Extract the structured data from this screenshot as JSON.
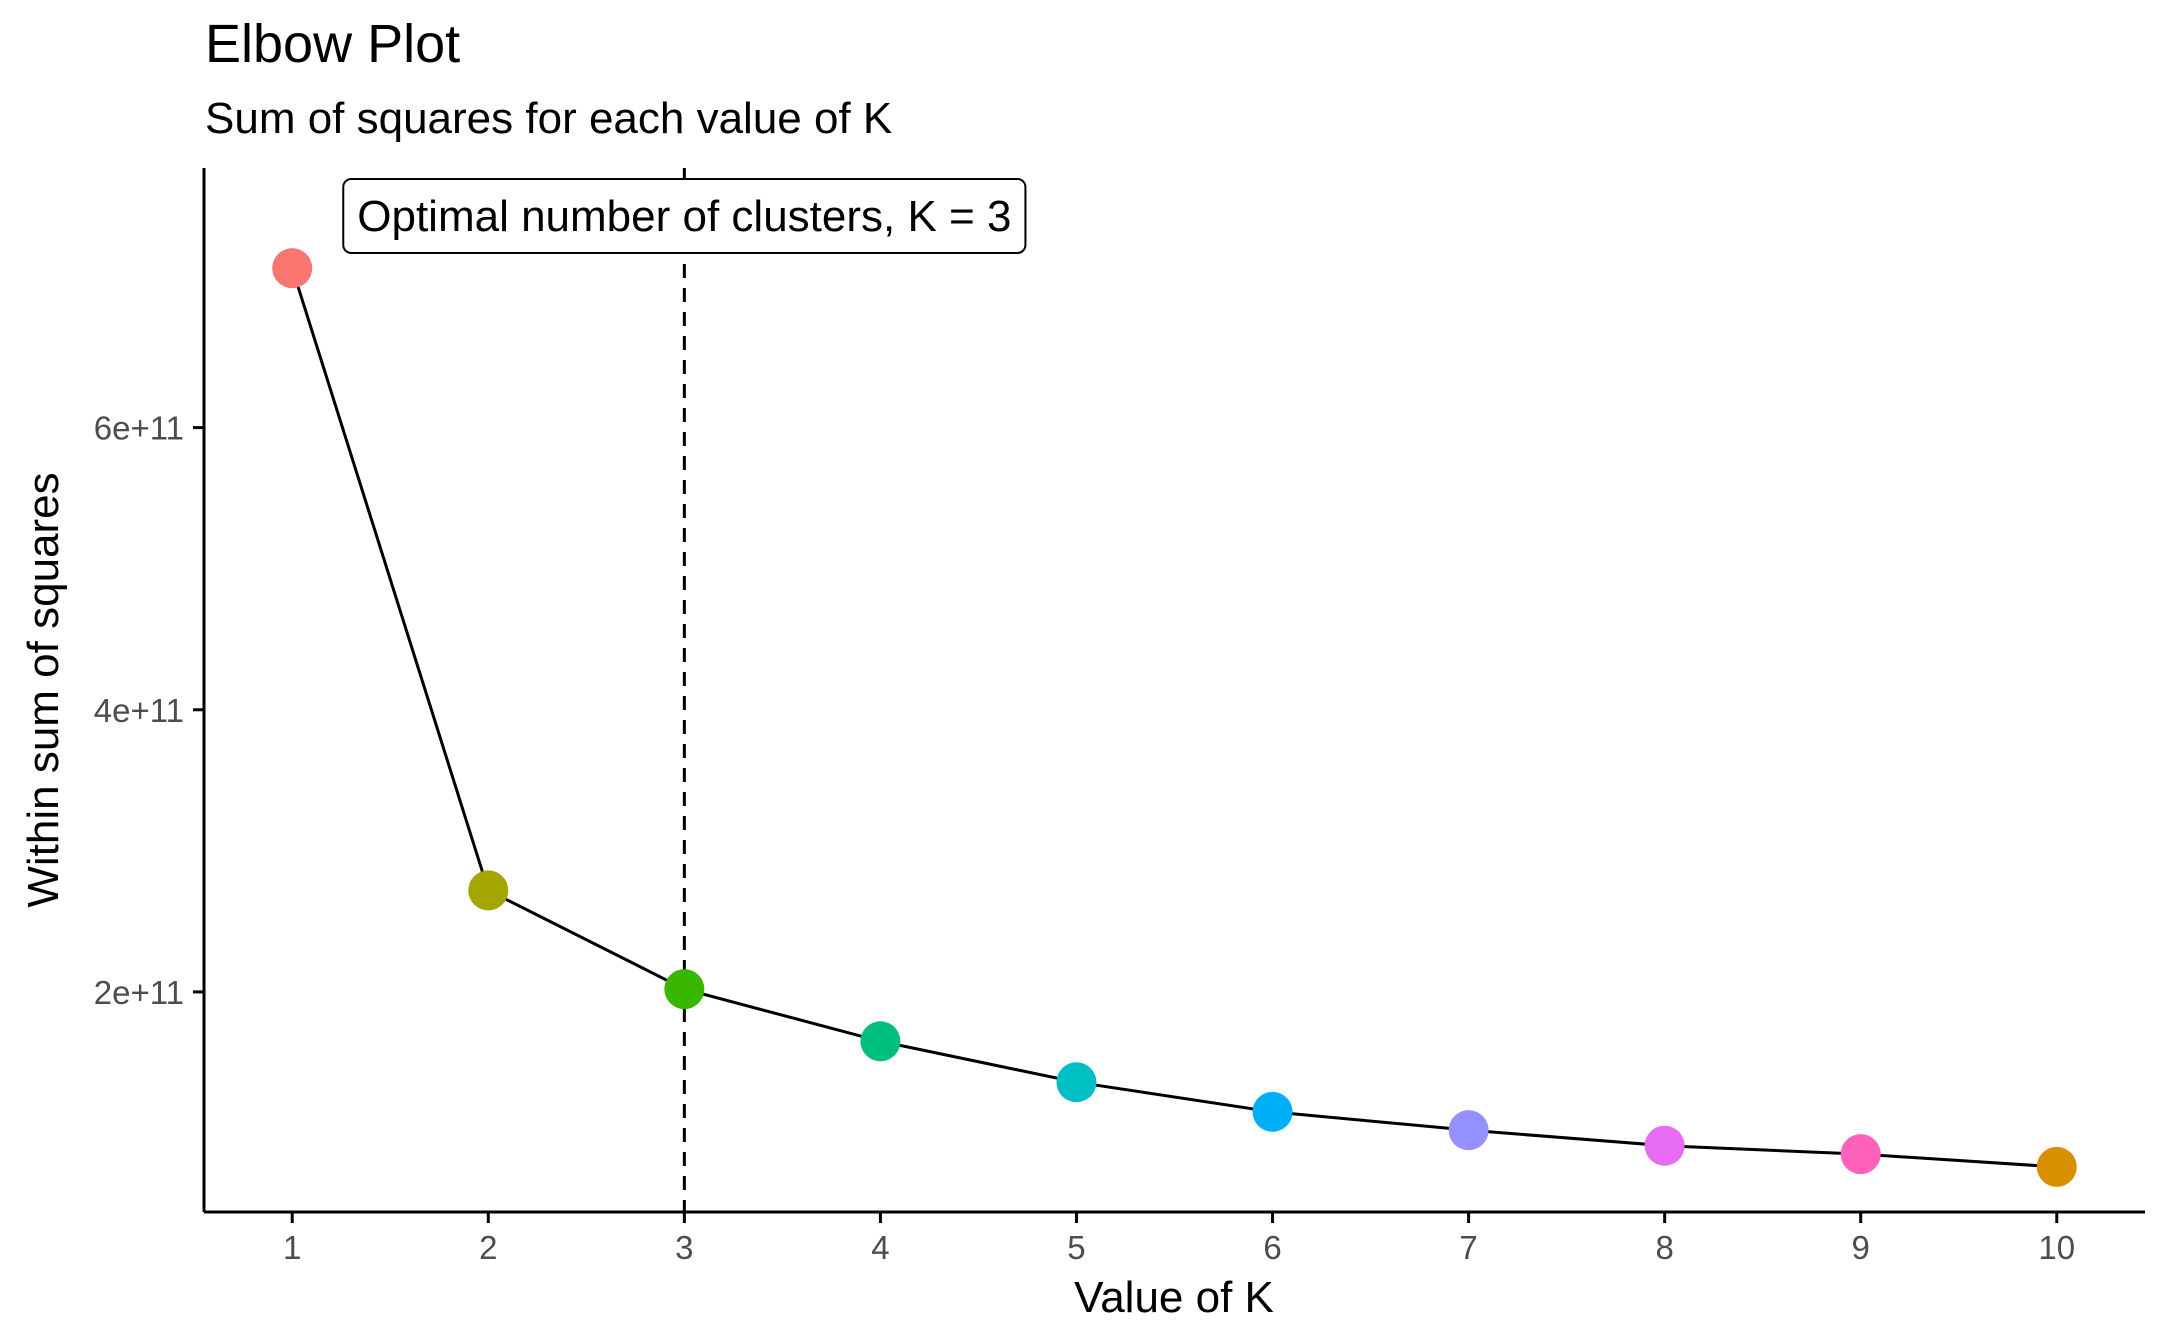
{
  "chart_data": {
    "type": "line",
    "title": "Elbow Plot",
    "subtitle": "Sum of squares for each value of K",
    "xlabel": "Value of K",
    "ylabel": "Within sum of squares",
    "x": [
      1,
      2,
      3,
      4,
      5,
      6,
      7,
      8,
      9,
      10
    ],
    "x_tick_labels": [
      "1",
      "2",
      "3",
      "4",
      "5",
      "6",
      "7",
      "8",
      "9",
      "10"
    ],
    "y": [
      713000000000.0,
      272000000000.0,
      202000000000.0,
      165000000000.0,
      136000000000.0,
      115000000000.0,
      102000000000.0,
      91000000000.0,
      85000000000.0,
      76000000000.0
    ],
    "y_ticks": [
      200000000000.0,
      400000000000.0,
      600000000000.0
    ],
    "y_tick_labels": [
      "2e+11",
      "4e+11",
      "6e+11"
    ],
    "xlim": [
      0.55,
      10.45
    ],
    "ylim": [
      44000000000.0,
      784000000000.0
    ],
    "point_colors": [
      "#F8766D",
      "#A3A500",
      "#39B600",
      "#00BF7D",
      "#00BFC4",
      "#00B0F6",
      "#9590FF",
      "#E76BF3",
      "#FF62BC",
      "#D89000"
    ],
    "line_color": "#000000",
    "vline": {
      "x": 3,
      "style": "dashed"
    },
    "annotation": {
      "text": "Optimal number of clusters, K = 3",
      "x": 3,
      "y": 750000000000.0
    },
    "grid": false,
    "legend": "none"
  }
}
